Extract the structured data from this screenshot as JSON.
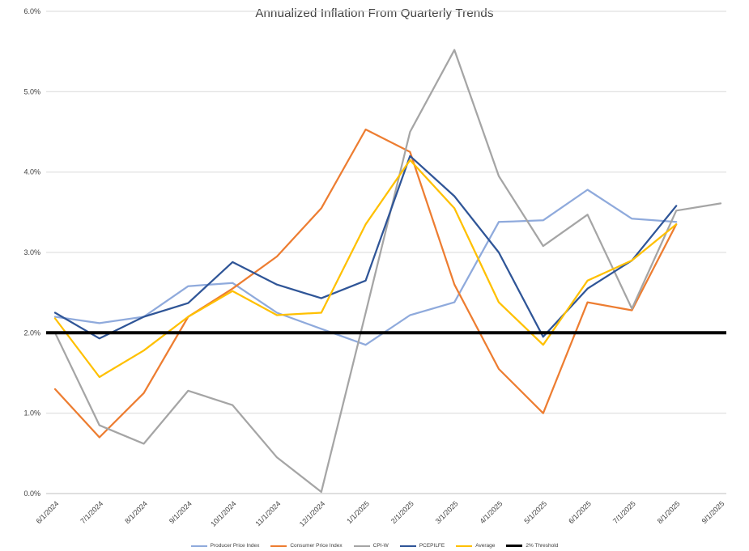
{
  "chart_data": {
    "type": "line",
    "title": "Annualized Inflation From Quarterly Trends",
    "xlabel": "",
    "ylabel": "",
    "ylim": [
      0,
      6
    ],
    "grid": true,
    "legend_position": "bottom",
    "y_ticks": [
      "0.0%",
      "1.0%",
      "2.0%",
      "3.0%",
      "4.0%",
      "5.0%",
      "6.0%"
    ],
    "categories": [
      "6/1/2024",
      "7/1/2024",
      "8/1/2024",
      "9/1/2024",
      "10/1/2024",
      "11/1/2024",
      "12/1/2024",
      "1/1/2025",
      "2/1/2025",
      "3/1/2025",
      "4/1/2025",
      "5/1/2025",
      "6/1/2025",
      "7/1/2025",
      "8/1/2025",
      "9/1/2025"
    ],
    "series": [
      {
        "name": "Producer Price Index",
        "color": "#8FAADC",
        "values": [
          2.2,
          2.12,
          2.2,
          2.58,
          2.62,
          2.25,
          2.05,
          1.85,
          2.22,
          2.38,
          3.38,
          3.4,
          3.78,
          3.42,
          3.38,
          null
        ]
      },
      {
        "name": "Consumer Price Index",
        "color": "#ED7D31",
        "values": [
          1.3,
          0.7,
          1.25,
          2.2,
          2.55,
          2.95,
          3.55,
          4.53,
          4.25,
          2.6,
          1.55,
          1.0,
          2.38,
          2.28,
          3.35,
          null
        ]
      },
      {
        "name": "CPI-W",
        "color": "#A5A5A5",
        "values": [
          2.0,
          0.85,
          0.62,
          1.28,
          1.1,
          0.45,
          0.02,
          2.25,
          4.5,
          5.52,
          3.95,
          3.08,
          3.47,
          2.3,
          3.52,
          3.61
        ]
      },
      {
        "name": "PCEPILFE",
        "color": "#2F5597",
        "values": [
          2.25,
          1.93,
          2.2,
          2.37,
          2.88,
          2.6,
          2.43,
          2.65,
          4.2,
          3.7,
          3.0,
          1.95,
          2.55,
          2.9,
          3.58,
          null
        ]
      },
      {
        "name": "Average",
        "color": "#FFC000",
        "values": [
          2.18,
          1.45,
          1.78,
          2.2,
          2.52,
          2.22,
          2.25,
          3.35,
          4.15,
          3.55,
          2.38,
          1.85,
          2.65,
          2.9,
          3.35,
          null
        ]
      },
      {
        "name": "2% Threshold",
        "color": "#000000",
        "hline": 2.0,
        "width": 4
      }
    ]
  }
}
